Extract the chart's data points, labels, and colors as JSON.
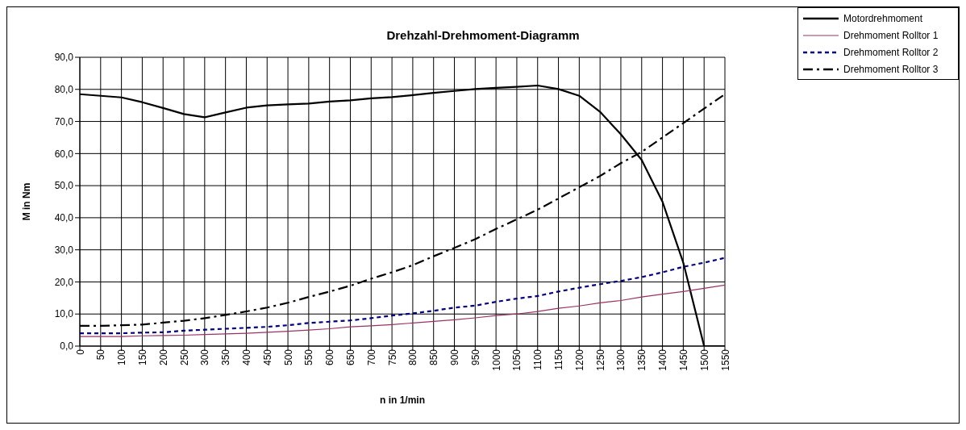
{
  "chart_data": {
    "type": "line",
    "title": "Drehzahl-Drehmoment-Diagramm",
    "xlabel": "n in 1/min",
    "ylabel": "M in Nm",
    "x": [
      0,
      50,
      100,
      150,
      200,
      250,
      300,
      350,
      400,
      450,
      500,
      550,
      600,
      650,
      700,
      750,
      800,
      850,
      900,
      950,
      1000,
      1050,
      1100,
      1150,
      1200,
      1250,
      1300,
      1350,
      1400,
      1450,
      1500,
      1550
    ],
    "series": [
      {
        "name": "Motordrehmoment",
        "color": "#000000",
        "line_style": "solid",
        "values": [
          78.5,
          78,
          77.5,
          76,
          74.2,
          72.3,
          71.3,
          72.8,
          74.3,
          75,
          75.3,
          75.6,
          76.2,
          76.6,
          77.2,
          77.6,
          78.2,
          78.9,
          79.5,
          80.1,
          80.5,
          80.8,
          81.2,
          80.1,
          78,
          73,
          66,
          58,
          45,
          26,
          0,
          0
        ]
      },
      {
        "name": "Drehmoment Rolltor 1",
        "color": "#993366",
        "line_style": "solid",
        "values": [
          3,
          3,
          3,
          3.2,
          3.3,
          3.4,
          3.6,
          3.8,
          4,
          4.3,
          4.6,
          5,
          5.4,
          6,
          6.3,
          6.7,
          7.2,
          7.7,
          8.2,
          8.8,
          9.5,
          10,
          10.8,
          11.8,
          12.5,
          13.5,
          14.2,
          15.3,
          16.2,
          17,
          18,
          19
        ]
      },
      {
        "name": "Drehmoment Rolltor 2",
        "color": "#000080",
        "line_style": "dotted",
        "values": [
          4,
          4,
          4,
          4.2,
          4.3,
          4.8,
          5.1,
          5.4,
          5.7,
          6,
          6.5,
          7.2,
          7.6,
          8,
          8.7,
          9.5,
          10.2,
          11,
          12,
          12.6,
          13.8,
          14.8,
          15.6,
          17,
          18.2,
          19.3,
          20.3,
          21.5,
          23,
          24.7,
          26,
          27.5
        ]
      },
      {
        "name": "Drehmoment Rolltor 3",
        "color": "#000000",
        "line_style": "dashed",
        "values": [
          6.3,
          6.3,
          6.5,
          6.7,
          7.3,
          7.9,
          8.7,
          9.7,
          10.8,
          12,
          13.5,
          15.3,
          17,
          18.8,
          21,
          23,
          25.2,
          28,
          30.6,
          33.3,
          36.5,
          39.5,
          42.5,
          46,
          49.5,
          53,
          57,
          60.5,
          65,
          69.5,
          74,
          78.5
        ]
      }
    ],
    "xlim": [
      0,
      1550
    ],
    "xticks": [
      0,
      50,
      100,
      150,
      200,
      250,
      300,
      350,
      400,
      450,
      500,
      550,
      600,
      650,
      700,
      750,
      800,
      850,
      900,
      950,
      1000,
      1050,
      1100,
      1150,
      1200,
      1250,
      1300,
      1350,
      1400,
      1450,
      1500,
      1550
    ],
    "ylim": [
      0,
      90
    ],
    "yticks": [
      {
        "value": 0,
        "label": "0,0"
      },
      {
        "value": 10,
        "label": "10,0"
      },
      {
        "value": 20,
        "label": "20,0"
      },
      {
        "value": 30,
        "label": "30,0"
      },
      {
        "value": 40,
        "label": "40,0"
      },
      {
        "value": 50,
        "label": "50,0"
      },
      {
        "value": 60,
        "label": "60,0"
      },
      {
        "value": 70,
        "label": "70,0"
      },
      {
        "value": 80,
        "label": "80,0"
      },
      {
        "value": 90,
        "label": "90,0"
      }
    ],
    "grid": true,
    "legend": "top right",
    "marker": "none"
  }
}
